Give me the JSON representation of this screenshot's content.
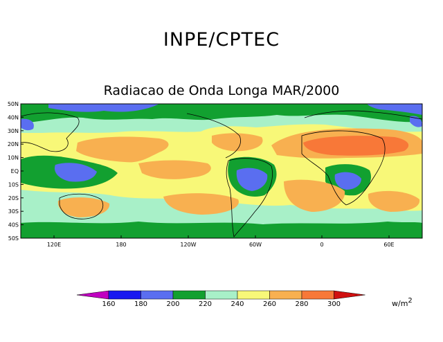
{
  "header": {
    "title": "INPE/CPTEC"
  },
  "map": {
    "title": "Radiacao de Onda Longa MAR/2000",
    "lat_labels": [
      "50N",
      "40N",
      "30N",
      "20N",
      "10N",
      "EQ",
      "10S",
      "20S",
      "30S",
      "40S",
      "50S"
    ],
    "lon_labels": [
      "120E",
      "180",
      "120W",
      "60W",
      "0",
      "60E"
    ]
  },
  "colorbar": {
    "levels": [
      "160",
      "180",
      "200",
      "220",
      "240",
      "260",
      "280",
      "300"
    ],
    "colors": [
      "#c000c0",
      "#1a1af0",
      "#5a6ef0",
      "#12a030",
      "#a8f0c8",
      "#f8f878",
      "#f8b050",
      "#f87838",
      "#d01010"
    ],
    "units": "w/m",
    "units_exp": "2"
  }
}
